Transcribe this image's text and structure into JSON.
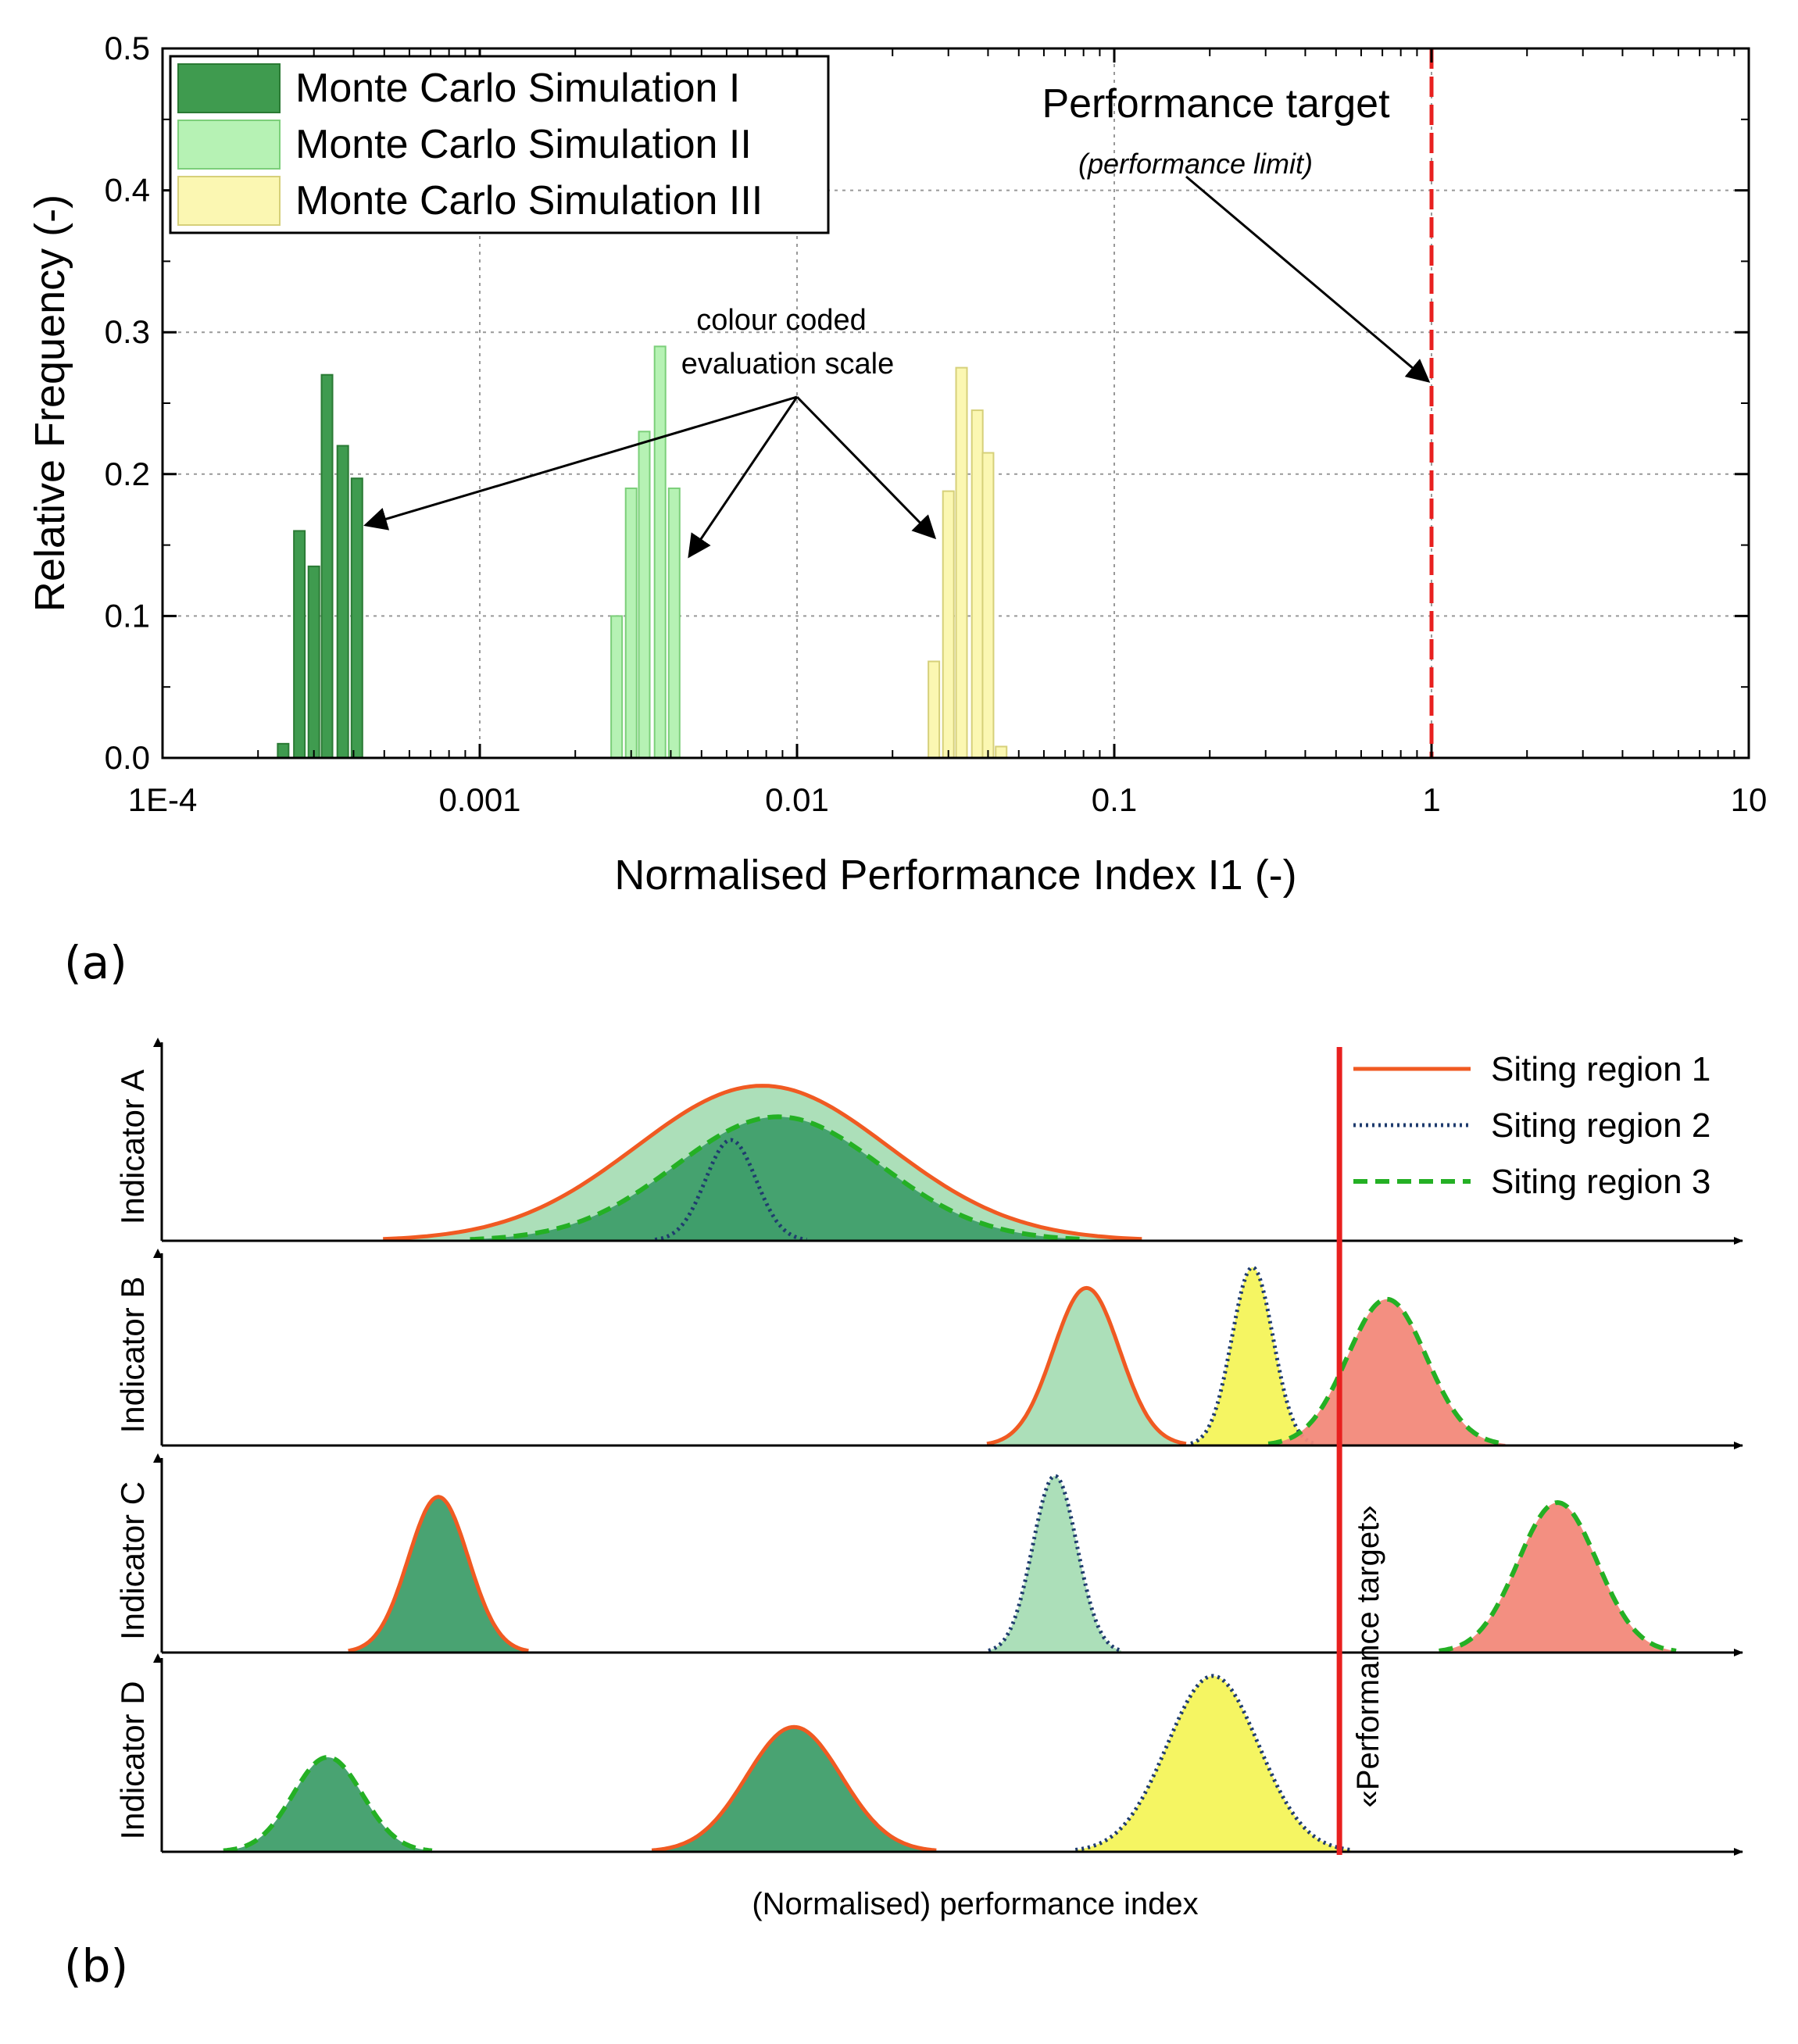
{
  "panel_labels": {
    "a": "(a)",
    "b": "(b)"
  },
  "colors": {
    "sim1": "#3f9b4f",
    "sim1_edge": "#2a7a34",
    "sim2": "#b6f2b4",
    "sim2_edge": "#7ccf7a",
    "sim3": "#fbf7b2",
    "sim3_edge": "#d6d07a",
    "target": "#e8201f",
    "grid": "#999999",
    "region1": "#f05a22",
    "region2": "#1f3c6e",
    "region3": "#24b024",
    "fill_dark_green": "#3f9e6a",
    "fill_light_green": "#a8ddb5",
    "fill_yellow": "#f4f45a",
    "fill_salmon": "#f2897a"
  },
  "chart_data": [
    {
      "type": "bar",
      "panel": "a",
      "title": "",
      "xlabel": "Normalised Performance Index I1 (-)",
      "ylabel": "Relative Frequency (-)",
      "xscale": "log",
      "xlim": [
        0.0001,
        10
      ],
      "ylim": [
        0,
        0.5
      ],
      "grid": true,
      "x_ticks": [
        {
          "value": 0.0001,
          "label": "1E-4"
        },
        {
          "value": 0.001,
          "label": "0.001"
        },
        {
          "value": 0.01,
          "label": "0.01"
        },
        {
          "value": 0.1,
          "label": "0.1"
        },
        {
          "value": 1,
          "label": "1"
        },
        {
          "value": 10,
          "label": "10"
        }
      ],
      "y_ticks": [
        {
          "value": 0.0,
          "label": "0.0"
        },
        {
          "value": 0.1,
          "label": "0.1"
        },
        {
          "value": 0.2,
          "label": "0.2"
        },
        {
          "value": 0.3,
          "label": "0.3"
        },
        {
          "value": 0.4,
          "label": "0.4"
        },
        {
          "value": 0.5,
          "label": "0.5"
        }
      ],
      "legend_position": "top-left",
      "series": [
        {
          "name": "Monte Carlo Simulation I",
          "color_key": "sim1",
          "x": [
            0.00024,
            0.00027,
            0.0003,
            0.00033,
            0.00037,
            0.00041
          ],
          "values": [
            0.01,
            0.16,
            0.135,
            0.27,
            0.22,
            0.197
          ]
        },
        {
          "name": "Monte Carlo Simulation II",
          "color_key": "sim2",
          "x": [
            0.0027,
            0.003,
            0.0033,
            0.0037,
            0.0041
          ],
          "values": [
            0.1,
            0.19,
            0.23,
            0.29,
            0.19
          ]
        },
        {
          "name": "Monte Carlo Simulation III",
          "color_key": "sim3",
          "x": [
            0.027,
            0.03,
            0.033,
            0.037,
            0.04,
            0.044,
            0.049
          ],
          "values": [
            0.068,
            0.188,
            0.275,
            0.245,
            0.215,
            0.008,
            0.0
          ]
        }
      ],
      "target_line": {
        "x": 1
      },
      "annotations": {
        "target_title": "Performance target",
        "target_subtitle": "(performance limit)",
        "scale_line1": "colour coded",
        "scale_line2": "evaluation scale"
      }
    },
    {
      "type": "area",
      "panel": "b",
      "xlabel": "(Normalised) performance index",
      "target_label": "«Performance target»",
      "target_x": 0.745,
      "legend_position": "top-right",
      "legend": [
        {
          "name": "Siting region 1",
          "style": "solid",
          "color_key": "region1"
        },
        {
          "name": "Siting region 2",
          "style": "dotted",
          "color_key": "region2"
        },
        {
          "name": "Siting region 3",
          "style": "dashed",
          "color_key": "region3"
        }
      ],
      "indicators": [
        {
          "name": "Indicator A",
          "curves": [
            {
              "region": 1,
              "center": 0.38,
              "width": 0.08,
              "height": 0.8,
              "fill_key": "fill_light_green"
            },
            {
              "region": 3,
              "center": 0.39,
              "width": 0.065,
              "height": 0.64,
              "fill_key": "fill_dark_green"
            },
            {
              "region": 2,
              "center": 0.36,
              "width": 0.016,
              "height": 0.52,
              "fill_key": "fill_dark_green"
            }
          ]
        },
        {
          "name": "Indicator B",
          "curves": [
            {
              "region": 1,
              "center": 0.585,
              "width": 0.021,
              "height": 0.84,
              "fill_key": "fill_light_green"
            },
            {
              "region": 2,
              "center": 0.69,
              "width": 0.013,
              "height": 0.95,
              "fill_key": "fill_yellow"
            },
            {
              "region": 3,
              "center": 0.775,
              "width": 0.025,
              "height": 0.78,
              "fill_key": "fill_salmon"
            }
          ]
        },
        {
          "name": "Indicator C",
          "curves": [
            {
              "region": 1,
              "center": 0.175,
              "width": 0.019,
              "height": 0.82,
              "fill_key": "fill_dark_green"
            },
            {
              "region": 2,
              "center": 0.565,
              "width": 0.014,
              "height": 0.93,
              "fill_key": "fill_light_green"
            },
            {
              "region": 3,
              "center": 0.883,
              "width": 0.025,
              "height": 0.79,
              "fill_key": "fill_salmon"
            }
          ]
        },
        {
          "name": "Indicator D",
          "curves": [
            {
              "region": 3,
              "center": 0.105,
              "width": 0.022,
              "height": 0.5,
              "fill_key": "fill_dark_green"
            },
            {
              "region": 1,
              "center": 0.4,
              "width": 0.03,
              "height": 0.66,
              "fill_key": "fill_dark_green"
            },
            {
              "region": 2,
              "center": 0.665,
              "width": 0.029,
              "height": 0.93,
              "fill_key": "fill_yellow"
            }
          ]
        }
      ]
    }
  ]
}
